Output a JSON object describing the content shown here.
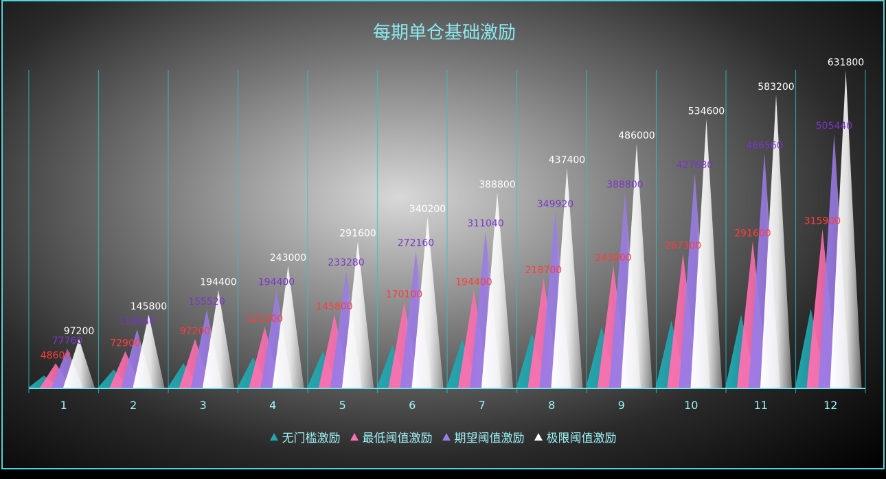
{
  "chart_data": {
    "type": "bar",
    "title": "每期单仓基础激励",
    "categories": [
      "1",
      "2",
      "3",
      "4",
      "5",
      "6",
      "7",
      "8",
      "9",
      "10",
      "11",
      "12"
    ],
    "series": [
      {
        "name": "无门槛激励",
        "color": "#22a7b0",
        "values": [
          24300,
          36450,
          48600,
          60750,
          72900,
          85050,
          97200,
          109350,
          121500,
          133650,
          145800,
          157950
        ],
        "labeled": false
      },
      {
        "name": "最低阈值激励",
        "color": "#ff6fb0",
        "values": [
          48600,
          72900,
          97200,
          121500,
          145800,
          170100,
          194400,
          218700,
          243000,
          267300,
          291600,
          315900
        ],
        "labeled": true,
        "label_color": "#ff3b3b"
      },
      {
        "name": "期望阈值激励",
        "color": "#9b7be6",
        "values": [
          77760,
          116640,
          155520,
          194400,
          233280,
          272160,
          311040,
          349920,
          388800,
          427680,
          466560,
          505440
        ],
        "labeled": true,
        "label_color": "#7a35c8"
      },
      {
        "name": "极限阈值激励",
        "color": "#ffffff",
        "values": [
          97200,
          145800,
          194400,
          243000,
          291600,
          340200,
          388800,
          437400,
          486000,
          534600,
          583200,
          631800
        ],
        "labeled": true,
        "label_color": "#ffffff"
      }
    ],
    "ylim": [
      0,
      650000
    ],
    "grid": "vertical",
    "legend": "bottom"
  }
}
